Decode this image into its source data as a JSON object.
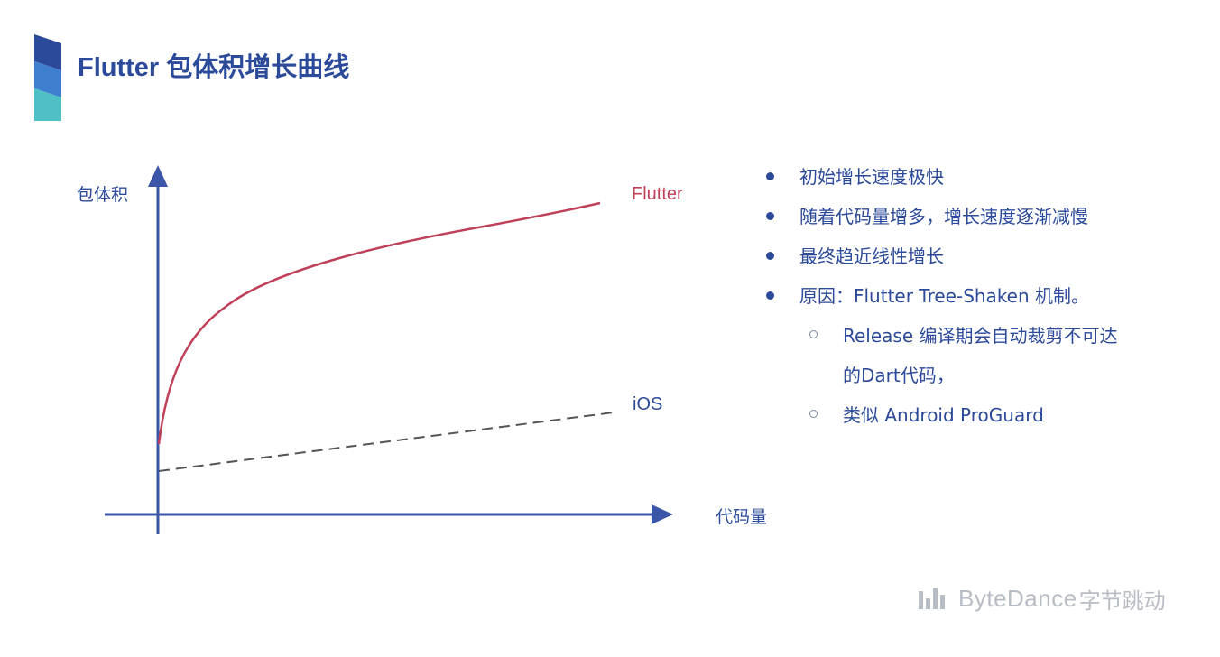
{
  "slide": {
    "title": "Flutter 包体积增长曲线",
    "accent_colors": [
      "#2c4a9a",
      "#3f7fd0",
      "#4fc1c6"
    ]
  },
  "diagram": {
    "y_axis_label": "包体积",
    "x_axis_label": "代码量",
    "series": [
      {
        "name": "Flutter",
        "color": "#c0405a",
        "style": "solid"
      },
      {
        "name": "iOS",
        "color": "#555555",
        "style": "dashed"
      }
    ],
    "axis_color": "#3b56a8"
  },
  "bullets": [
    {
      "level": 1,
      "text": "初始增长速度极快"
    },
    {
      "level": 1,
      "text": "随着代码量增多，增长速度逐渐减慢"
    },
    {
      "level": 1,
      "text": "最终趋近线性增长"
    },
    {
      "level": 1,
      "text": "原因：Flutter Tree-Shaken 机制。"
    },
    {
      "level": 2,
      "text": "Release 编译期会自动裁剪不可达"
    },
    {
      "level": 2,
      "text": "的Dart代码，",
      "continuation": true
    },
    {
      "level": 2,
      "text": "类似 Android ProGuard"
    }
  ],
  "footer": {
    "brand": "ByteDance",
    "brand_cn": "字节跳动",
    "logo_icon": "bytedance-logo-icon"
  }
}
